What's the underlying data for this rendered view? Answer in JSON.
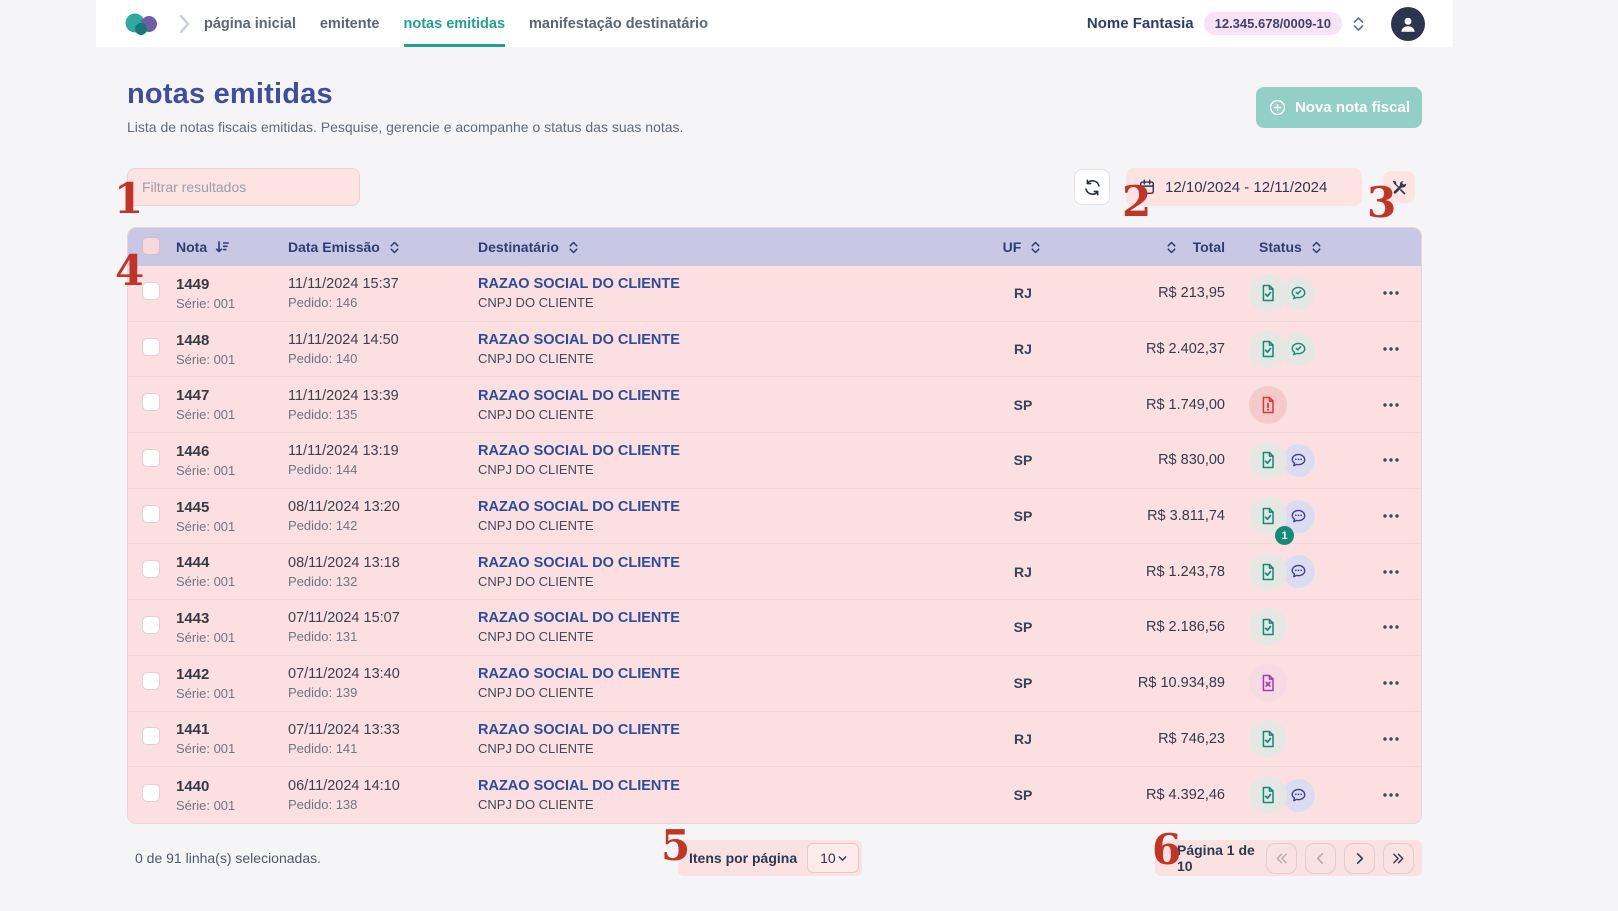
{
  "topbar": {
    "nav": [
      {
        "label": "página inicial",
        "active": false
      },
      {
        "label": "emitente",
        "active": false
      },
      {
        "label": "notas emitidas",
        "active": true
      },
      {
        "label": "manifestação destinatário",
        "active": false
      }
    ],
    "company": "Nome Fantasia",
    "cnpj": "12.345.678/0009-10"
  },
  "page": {
    "title": "notas emitidas",
    "subtitle": "Lista de notas fiscais emitidas. Pesquise, gerencie e acompanhe o status das suas notas.",
    "new_invoice_button": "Nova nota fiscal"
  },
  "filters": {
    "search_placeholder": "Filtrar resultados",
    "date_range": "12/10/2024 - 12/11/2024"
  },
  "table": {
    "columns": [
      {
        "label": "Nota",
        "sort": "desc"
      },
      {
        "label": "Data Emissão",
        "sort": "none"
      },
      {
        "label": "Destinatário",
        "sort": "none"
      },
      {
        "label": "UF",
        "sort": "none"
      },
      {
        "label": "Total",
        "sort": "none"
      },
      {
        "label": "Status",
        "sort": "none"
      }
    ],
    "rows": [
      {
        "nota": "1449",
        "serie": "Série: 001",
        "data": "11/11/2024 15:37",
        "pedido": "Pedido: 146",
        "razao": "RAZAO SOCIAL DO CLIENTE",
        "cnpj": "CNPJ DO CLIENTE",
        "uf": "RJ",
        "total": "R$ 213,95",
        "status": [
          "doc-check",
          "chat-check"
        ],
        "badge": ""
      },
      {
        "nota": "1448",
        "serie": "Série: 001",
        "data": "11/11/2024 14:50",
        "pedido": "Pedido: 140",
        "razao": "RAZAO SOCIAL DO CLIENTE",
        "cnpj": "CNPJ DO CLIENTE",
        "uf": "RJ",
        "total": "R$ 2.402,37",
        "status": [
          "doc-check",
          "chat-check"
        ],
        "badge": ""
      },
      {
        "nota": "1447",
        "serie": "Série: 001",
        "data": "11/11/2024 13:39",
        "pedido": "Pedido: 135",
        "razao": "RAZAO SOCIAL DO CLIENTE",
        "cnpj": "CNPJ DO CLIENTE",
        "uf": "SP",
        "total": "R$ 1.749,00",
        "status": [
          "doc-error"
        ],
        "badge": ""
      },
      {
        "nota": "1446",
        "serie": "Série: 001",
        "data": "11/11/2024 13:19",
        "pedido": "Pedido: 144",
        "razao": "RAZAO SOCIAL DO CLIENTE",
        "cnpj": "CNPJ DO CLIENTE",
        "uf": "SP",
        "total": "R$ 830,00",
        "status": [
          "doc-check",
          "chat-dots"
        ],
        "badge": ""
      },
      {
        "nota": "1445",
        "serie": "Série: 001",
        "data": "08/11/2024 13:20",
        "pedido": "Pedido: 142",
        "razao": "RAZAO SOCIAL DO CLIENTE",
        "cnpj": "CNPJ DO CLIENTE",
        "uf": "SP",
        "total": "R$ 3.811,74",
        "status": [
          "doc-check",
          "chat-dots"
        ],
        "badge": "1"
      },
      {
        "nota": "1444",
        "serie": "Série: 001",
        "data": "08/11/2024 13:18",
        "pedido": "Pedido: 132",
        "razao": "RAZAO SOCIAL DO CLIENTE",
        "cnpj": "CNPJ DO CLIENTE",
        "uf": "RJ",
        "total": "R$ 1.243,78",
        "status": [
          "doc-check",
          "chat-dots"
        ],
        "badge": ""
      },
      {
        "nota": "1443",
        "serie": "Série: 001",
        "data": "07/11/2024 15:07",
        "pedido": "Pedido: 131",
        "razao": "RAZAO SOCIAL DO CLIENTE",
        "cnpj": "CNPJ DO CLIENTE",
        "uf": "SP",
        "total": "R$ 2.186,56",
        "status": [
          "doc-check"
        ],
        "badge": ""
      },
      {
        "nota": "1442",
        "serie": "Série: 001",
        "data": "07/11/2024 13:40",
        "pedido": "Pedido: 139",
        "razao": "RAZAO SOCIAL DO CLIENTE",
        "cnpj": "CNPJ DO CLIENTE",
        "uf": "SP",
        "total": "R$ 10.934,89",
        "status": [
          "doc-x"
        ],
        "badge": ""
      },
      {
        "nota": "1441",
        "serie": "Série: 001",
        "data": "07/11/2024 13:33",
        "pedido": "Pedido: 141",
        "razao": "RAZAO SOCIAL DO CLIENTE",
        "cnpj": "CNPJ DO CLIENTE",
        "uf": "RJ",
        "total": "R$ 746,23",
        "status": [
          "doc-check"
        ],
        "badge": ""
      },
      {
        "nota": "1440",
        "serie": "Série: 001",
        "data": "06/11/2024 14:10",
        "pedido": "Pedido: 138",
        "razao": "RAZAO SOCIAL DO CLIENTE",
        "cnpj": "CNPJ DO CLIENTE",
        "uf": "SP",
        "total": "R$ 4.392,46",
        "status": [
          "doc-check",
          "chat-dots"
        ],
        "badge": ""
      }
    ]
  },
  "footer": {
    "selection": "0 de 91 linha(s) selecionadas.",
    "items_per_page_label": "Itens por página",
    "items_per_page_value": "10",
    "page_info": "Página 1 de 10"
  },
  "annotations": [
    "1",
    "2",
    "3",
    "4",
    "5",
    "6"
  ],
  "colors": {
    "accent_teal": "#23a094",
    "button_teal": "#92cfc7",
    "header_lavender": "#c8c8e4",
    "highlight_pink": "#fcdfe0",
    "title_blue": "#3e4d9f",
    "link_blue": "#2b4d9b",
    "status_ok": "#148a79",
    "status_error": "#d93636",
    "status_cancel": "#a43ab2",
    "annotation_red": "#c23427"
  }
}
